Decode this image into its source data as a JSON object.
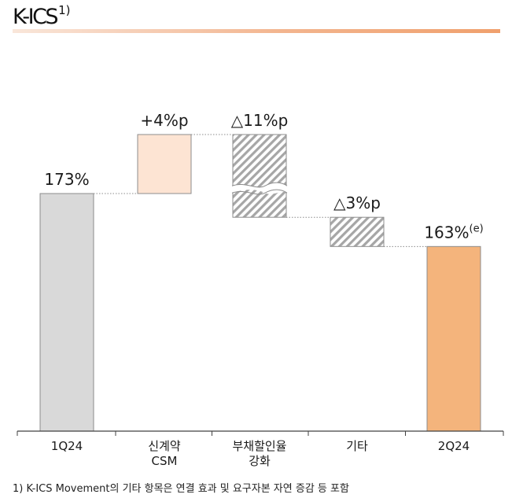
{
  "title": "K-ICS",
  "title_note": "1)",
  "footnote": "1) K-ICS Movement의 기타 항목은 연결 효과 및 요구자본 자연 증감 등 포함",
  "colors": {
    "start_bar": "#d9d9d9",
    "increase_bar": "#fde4d3",
    "decrease_hatch": "#a6a6a6",
    "end_bar": "#f4b47c",
    "bar_edge": "#8c8c8c",
    "connector": "#8c8c8c"
  },
  "chart_data": {
    "type": "bar",
    "subtype": "waterfall",
    "categories": [
      [
        "1Q24"
      ],
      [
        "신계약",
        "CSM"
      ],
      [
        "부채할인율",
        "강화"
      ],
      [
        "기타"
      ],
      [
        "2Q24"
      ]
    ],
    "steps": [
      {
        "kind": "total",
        "value": 173,
        "label": "173%",
        "label_sup": ""
      },
      {
        "kind": "increase",
        "value": 4,
        "label": "+4%p",
        "label_sup": ""
      },
      {
        "kind": "decrease",
        "value": -11,
        "label": "△11%p",
        "label_sup": "",
        "axis_break": true
      },
      {
        "kind": "decrease",
        "value": -3,
        "label": "△3%p",
        "label_sup": ""
      },
      {
        "kind": "total",
        "value": 163,
        "label": "163%",
        "label_sup": "(e)"
      }
    ],
    "axis_break": true,
    "grid": false,
    "legend": "none"
  }
}
